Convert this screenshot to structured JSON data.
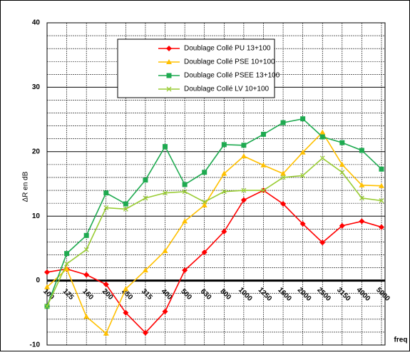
{
  "chart_data": {
    "type": "line",
    "ylabel": "ΔR en dB",
    "xlabel": "freq",
    "categories": [
      "100",
      "125",
      "160",
      "200",
      "250",
      "315",
      "400",
      "500",
      "630",
      "800",
      "1000",
      "1250",
      "1600",
      "2000",
      "2500",
      "3150",
      "4000",
      "5000"
    ],
    "series": [
      {
        "name": "Doublage Collé PU 13+100",
        "color": "#ff0000",
        "marker": "diamond",
        "values": [
          1.3,
          1.8,
          0.9,
          -0.6,
          -5,
          -8.1,
          -4.8,
          1.6,
          4.4,
          7.6,
          12.5,
          14.0,
          11.9,
          8.8,
          5.9,
          8.5,
          9.2,
          8.3
        ]
      },
      {
        "name": "Doublage Collé PSE 10+100",
        "color": "#ffc000",
        "marker": "triangle",
        "values": [
          -1,
          1.8,
          -5.6,
          -8.2,
          -1.3,
          1.6,
          4.6,
          9.2,
          11.7,
          16.6,
          19.3,
          17.9,
          16.6,
          19.9,
          23.0,
          18.0,
          14.8,
          14.7
        ]
      },
      {
        "name": "Doublage Collé PSEE 13+100",
        "color": "#1eaa50",
        "marker": "square",
        "values": [
          -4,
          4.2,
          7.0,
          13.6,
          11.9,
          15.6,
          20.8,
          14.9,
          16.8,
          21.1,
          21.0,
          22.7,
          24.5,
          25.1,
          22.3,
          21.4,
          20.2,
          17.3
        ]
      },
      {
        "name": "Doublage Collé LV 10+100",
        "color": "#99cc33",
        "marker": "x",
        "values": [
          -4,
          2.6,
          4.8,
          11.3,
          11.1,
          12.8,
          13.6,
          13.8,
          12.2,
          13.8,
          14.0,
          14.0,
          16.0,
          16.3,
          19.0,
          16.8,
          12.8,
          12.4
        ]
      }
    ],
    "ylim": [
      -10,
      40
    ],
    "yticks": [
      -10,
      0,
      10,
      20,
      30,
      40
    ],
    "grid": true,
    "legend": "top"
  }
}
